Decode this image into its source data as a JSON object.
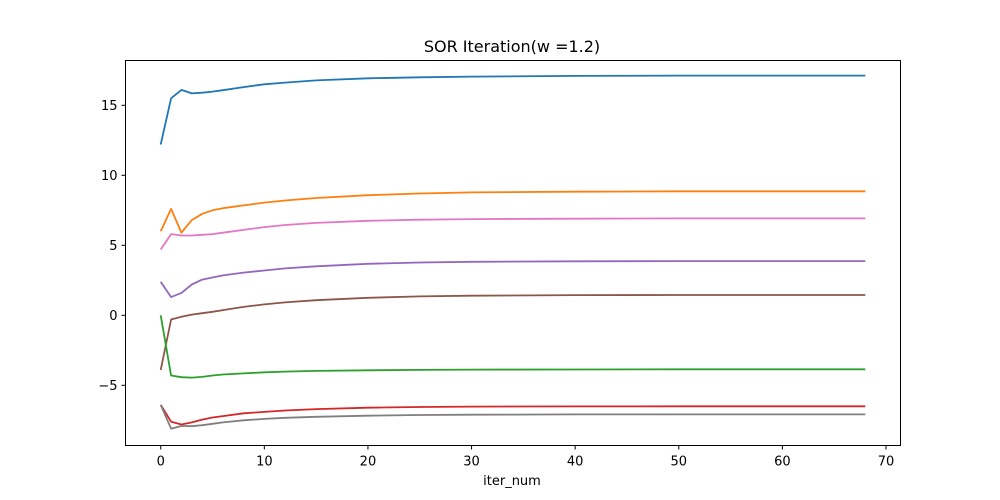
{
  "chart_data": {
    "type": "line",
    "title": "SOR Iteration(w =1.2)",
    "xlabel": "iter_num",
    "ylabel": "",
    "xlim": [
      -3.4,
      71.4
    ],
    "ylim": [
      -9.3,
      18.2
    ],
    "xticks": [
      0,
      10,
      20,
      30,
      40,
      50,
      60,
      70
    ],
    "yticks": [
      -5,
      0,
      5,
      10,
      15
    ],
    "ytick_labels": [
      "−5",
      "0",
      "5",
      "10",
      "15"
    ],
    "legend": "none",
    "grid": false,
    "series": [
      {
        "color": "#1f77b4",
        "points": [
          [
            0,
            12.2
          ],
          [
            1,
            15.5
          ],
          [
            2,
            16.1
          ],
          [
            3,
            15.85
          ],
          [
            4,
            15.9
          ],
          [
            5,
            15.98
          ],
          [
            6,
            16.08
          ],
          [
            8,
            16.3
          ],
          [
            10,
            16.5
          ],
          [
            12,
            16.62
          ],
          [
            15,
            16.78
          ],
          [
            20,
            16.93
          ],
          [
            25,
            17.0
          ],
          [
            30,
            17.05
          ],
          [
            40,
            17.1
          ],
          [
            50,
            17.12
          ],
          [
            60,
            17.12
          ],
          [
            68,
            17.12
          ]
        ]
      },
      {
        "color": "#ff7f0e",
        "points": [
          [
            0,
            6.0
          ],
          [
            1,
            7.6
          ],
          [
            2,
            5.9
          ],
          [
            3,
            6.8
          ],
          [
            4,
            7.25
          ],
          [
            5,
            7.5
          ],
          [
            6,
            7.65
          ],
          [
            8,
            7.85
          ],
          [
            10,
            8.05
          ],
          [
            12,
            8.2
          ],
          [
            15,
            8.38
          ],
          [
            20,
            8.58
          ],
          [
            25,
            8.7
          ],
          [
            30,
            8.78
          ],
          [
            40,
            8.83
          ],
          [
            50,
            8.86
          ],
          [
            60,
            8.86
          ],
          [
            68,
            8.86
          ]
        ]
      },
      {
        "color": "#e377c2",
        "points": [
          [
            0,
            4.7
          ],
          [
            1,
            5.8
          ],
          [
            2,
            5.7
          ],
          [
            3,
            5.7
          ],
          [
            4,
            5.75
          ],
          [
            5,
            5.8
          ],
          [
            6,
            5.9
          ],
          [
            8,
            6.1
          ],
          [
            10,
            6.3
          ],
          [
            12,
            6.45
          ],
          [
            15,
            6.6
          ],
          [
            20,
            6.75
          ],
          [
            25,
            6.83
          ],
          [
            30,
            6.87
          ],
          [
            40,
            6.9
          ],
          [
            50,
            6.92
          ],
          [
            60,
            6.92
          ],
          [
            68,
            6.92
          ]
        ]
      },
      {
        "color": "#9467bd",
        "points": [
          [
            0,
            2.4
          ],
          [
            1,
            1.3
          ],
          [
            2,
            1.6
          ],
          [
            3,
            2.2
          ],
          [
            4,
            2.55
          ],
          [
            5,
            2.7
          ],
          [
            6,
            2.85
          ],
          [
            8,
            3.05
          ],
          [
            10,
            3.2
          ],
          [
            12,
            3.35
          ],
          [
            15,
            3.5
          ],
          [
            20,
            3.68
          ],
          [
            25,
            3.77
          ],
          [
            30,
            3.82
          ],
          [
            40,
            3.86
          ],
          [
            50,
            3.87
          ],
          [
            60,
            3.87
          ],
          [
            68,
            3.87
          ]
        ]
      },
      {
        "color": "#8c564b",
        "points": [
          [
            0,
            -3.9
          ],
          [
            1,
            -0.3
          ],
          [
            2,
            -0.1
          ],
          [
            3,
            0.05
          ],
          [
            4,
            0.15
          ],
          [
            5,
            0.25
          ],
          [
            6,
            0.37
          ],
          [
            8,
            0.6
          ],
          [
            10,
            0.78
          ],
          [
            12,
            0.92
          ],
          [
            15,
            1.08
          ],
          [
            20,
            1.25
          ],
          [
            25,
            1.35
          ],
          [
            30,
            1.4
          ],
          [
            40,
            1.44
          ],
          [
            50,
            1.45
          ],
          [
            60,
            1.45
          ],
          [
            68,
            1.45
          ]
        ]
      },
      {
        "color": "#2ca02c",
        "points": [
          [
            0,
            0.0
          ],
          [
            1,
            -4.3
          ],
          [
            2,
            -4.42
          ],
          [
            3,
            -4.45
          ],
          [
            4,
            -4.4
          ],
          [
            5,
            -4.3
          ],
          [
            6,
            -4.23
          ],
          [
            8,
            -4.15
          ],
          [
            10,
            -4.07
          ],
          [
            12,
            -4.02
          ],
          [
            15,
            -3.97
          ],
          [
            20,
            -3.93
          ],
          [
            25,
            -3.9
          ],
          [
            30,
            -3.88
          ],
          [
            40,
            -3.87
          ],
          [
            50,
            -3.86
          ],
          [
            60,
            -3.86
          ],
          [
            68,
            -3.86
          ]
        ]
      },
      {
        "color": "#d62728",
        "points": [
          [
            0,
            -6.4
          ],
          [
            1,
            -7.6
          ],
          [
            2,
            -7.8
          ],
          [
            3,
            -7.65
          ],
          [
            4,
            -7.45
          ],
          [
            5,
            -7.3
          ],
          [
            6,
            -7.2
          ],
          [
            8,
            -7.0
          ],
          [
            10,
            -6.9
          ],
          [
            12,
            -6.8
          ],
          [
            15,
            -6.7
          ],
          [
            20,
            -6.6
          ],
          [
            25,
            -6.55
          ],
          [
            30,
            -6.52
          ],
          [
            40,
            -6.51
          ],
          [
            50,
            -6.5
          ],
          [
            60,
            -6.5
          ],
          [
            68,
            -6.5
          ]
        ]
      },
      {
        "color": "#7f7f7f",
        "points": [
          [
            0,
            -6.4
          ],
          [
            1,
            -8.1
          ],
          [
            2,
            -7.9
          ],
          [
            3,
            -7.92
          ],
          [
            4,
            -7.85
          ],
          [
            5,
            -7.75
          ],
          [
            6,
            -7.65
          ],
          [
            8,
            -7.5
          ],
          [
            10,
            -7.4
          ],
          [
            12,
            -7.32
          ],
          [
            15,
            -7.25
          ],
          [
            20,
            -7.17
          ],
          [
            25,
            -7.12
          ],
          [
            30,
            -7.1
          ],
          [
            40,
            -7.08
          ],
          [
            50,
            -7.08
          ],
          [
            60,
            -7.08
          ],
          [
            68,
            -7.08
          ]
        ]
      }
    ]
  }
}
